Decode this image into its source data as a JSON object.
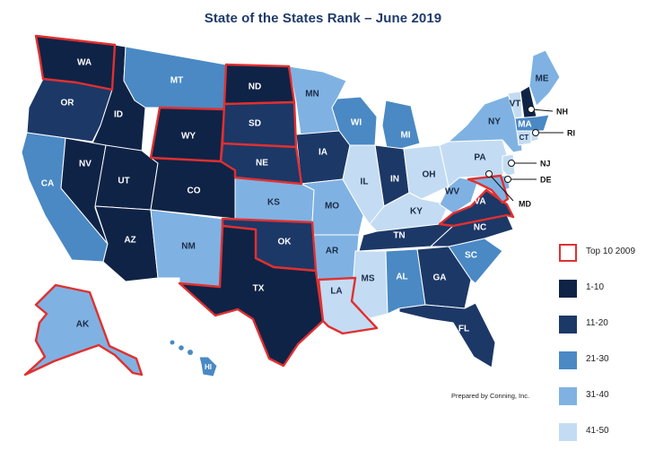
{
  "title": "State of the States Rank – June 2019",
  "credit": "Prepared by Conning, Inc.",
  "colors": {
    "1-10": "#0f2346",
    "11-20": "#1c3867",
    "21-30": "#4a89c4",
    "31-40": "#7fb2e2",
    "41-50": "#c3dcf3",
    "top10_outline": "#e03030"
  },
  "legend": [
    {
      "label": "Top 10 2009",
      "key": "top10"
    },
    {
      "label": "1-10",
      "key": "1-10"
    },
    {
      "label": "11-20",
      "key": "11-20"
    },
    {
      "label": "21-30",
      "key": "21-30"
    },
    {
      "label": "31-40",
      "key": "31-40"
    },
    {
      "label": "41-50",
      "key": "41-50"
    }
  ],
  "states": [
    {
      "code": "WA",
      "tier": "1-10",
      "top10_2009": true
    },
    {
      "code": "OR",
      "tier": "11-20",
      "top10_2009": false
    },
    {
      "code": "CA",
      "tier": "21-30",
      "top10_2009": false
    },
    {
      "code": "ID",
      "tier": "1-10",
      "top10_2009": false
    },
    {
      "code": "NV",
      "tier": "1-10",
      "top10_2009": false
    },
    {
      "code": "MT",
      "tier": "21-30",
      "top10_2009": false
    },
    {
      "code": "WY",
      "tier": "1-10",
      "top10_2009": true
    },
    {
      "code": "UT",
      "tier": "1-10",
      "top10_2009": false
    },
    {
      "code": "AZ",
      "tier": "1-10",
      "top10_2009": false
    },
    {
      "code": "CO",
      "tier": "1-10",
      "top10_2009": false
    },
    {
      "code": "NM",
      "tier": "31-40",
      "top10_2009": false
    },
    {
      "code": "ND",
      "tier": "1-10",
      "top10_2009": true
    },
    {
      "code": "SD",
      "tier": "11-20",
      "top10_2009": true
    },
    {
      "code": "NE",
      "tier": "11-20",
      "top10_2009": true
    },
    {
      "code": "KS",
      "tier": "31-40",
      "top10_2009": false
    },
    {
      "code": "OK",
      "tier": "11-20",
      "top10_2009": true
    },
    {
      "code": "TX",
      "tier": "1-10",
      "top10_2009": true
    },
    {
      "code": "MN",
      "tier": "31-40",
      "top10_2009": false
    },
    {
      "code": "IA",
      "tier": "11-20",
      "top10_2009": false
    },
    {
      "code": "MO",
      "tier": "31-40",
      "top10_2009": false
    },
    {
      "code": "AR",
      "tier": "31-40",
      "top10_2009": false
    },
    {
      "code": "LA",
      "tier": "41-50",
      "top10_2009": true
    },
    {
      "code": "WI",
      "tier": "21-30",
      "top10_2009": false
    },
    {
      "code": "IL",
      "tier": "41-50",
      "top10_2009": false
    },
    {
      "code": "MI",
      "tier": "21-30",
      "top10_2009": false
    },
    {
      "code": "IN",
      "tier": "11-20",
      "top10_2009": false
    },
    {
      "code": "OH",
      "tier": "41-50",
      "top10_2009": false
    },
    {
      "code": "KY",
      "tier": "41-50",
      "top10_2009": false
    },
    {
      "code": "TN",
      "tier": "11-20",
      "top10_2009": false
    },
    {
      "code": "MS",
      "tier": "41-50",
      "top10_2009": false
    },
    {
      "code": "AL",
      "tier": "21-30",
      "top10_2009": false
    },
    {
      "code": "GA",
      "tier": "11-20",
      "top10_2009": false
    },
    {
      "code": "FL",
      "tier": "11-20",
      "top10_2009": false
    },
    {
      "code": "SC",
      "tier": "21-30",
      "top10_2009": false
    },
    {
      "code": "NC",
      "tier": "11-20",
      "top10_2009": false
    },
    {
      "code": "VA",
      "tier": "11-20",
      "top10_2009": true
    },
    {
      "code": "WV",
      "tier": "31-40",
      "top10_2009": false
    },
    {
      "code": "PA",
      "tier": "41-50",
      "top10_2009": false
    },
    {
      "code": "NY",
      "tier": "31-40",
      "top10_2009": false
    },
    {
      "code": "VT",
      "tier": "41-50",
      "top10_2009": false
    },
    {
      "code": "NH",
      "tier": "1-10",
      "top10_2009": false
    },
    {
      "code": "ME",
      "tier": "31-40",
      "top10_2009": false
    },
    {
      "code": "MA",
      "tier": "21-30",
      "top10_2009": false
    },
    {
      "code": "CT",
      "tier": "41-50",
      "top10_2009": false
    },
    {
      "code": "RI",
      "tier": "41-50",
      "top10_2009": false
    },
    {
      "code": "NJ",
      "tier": "41-50",
      "top10_2009": false
    },
    {
      "code": "DE",
      "tier": "31-40",
      "top10_2009": false
    },
    {
      "code": "MD",
      "tier": "31-40",
      "top10_2009": true
    },
    {
      "code": "AK",
      "tier": "31-40",
      "top10_2009": true
    },
    {
      "code": "HI",
      "tier": "21-30",
      "top10_2009": false
    }
  ]
}
